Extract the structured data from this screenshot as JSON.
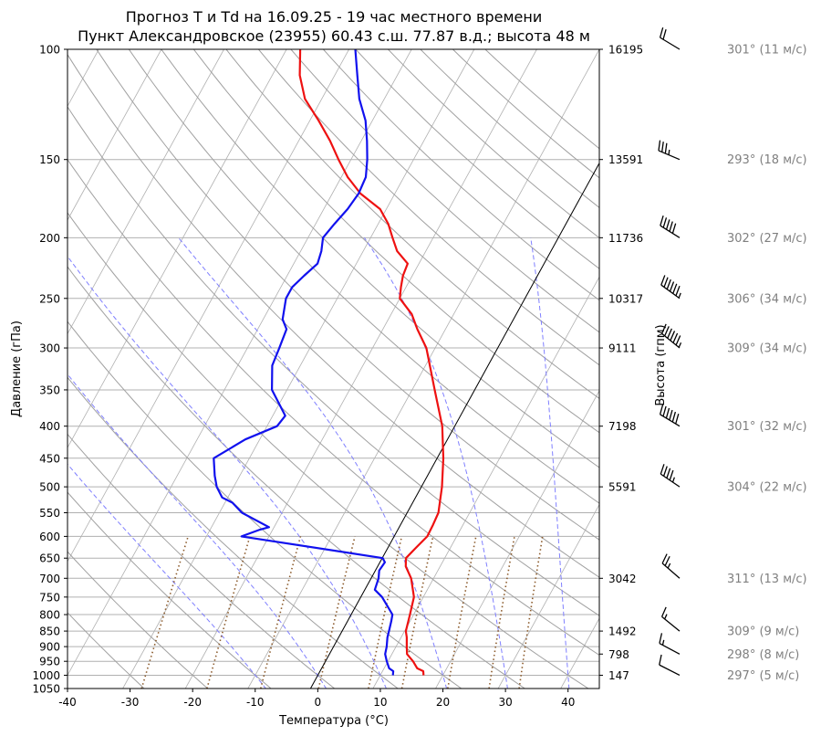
{
  "chart_data": {
    "type": "line",
    "subtype": "skew-t log-p",
    "title_line1": "Прогноз T и Td на 16.09.25 - 19 час местного времени",
    "title_line2": "Пункт Александровское (23955) 60.43 с.ш. 77.87 в.д.; высота 48 м",
    "xlabel": "Температура (°C)",
    "ylabel": "Давление (гПа)",
    "ylabel_right": "Высота (гпм)",
    "xlim": [
      -40,
      45
    ],
    "ylim": [
      1050,
      100
    ],
    "yscale": "log",
    "skew_deg_per_decade": 55,
    "grid": true,
    "x_ticks": [
      "-40",
      "-30",
      "-20",
      "-10",
      "0",
      "10",
      "20",
      "30",
      "40"
    ],
    "y_ticks": [
      100,
      150,
      200,
      250,
      300,
      350,
      400,
      450,
      500,
      550,
      600,
      650,
      700,
      750,
      800,
      850,
      900,
      950,
      1000,
      1050
    ],
    "height_ticks": [
      {
        "p": 100,
        "label": "16195"
      },
      {
        "p": 150,
        "label": "13591"
      },
      {
        "p": 200,
        "label": "11736"
      },
      {
        "p": 250,
        "label": "10317"
      },
      {
        "p": 300,
        "label": "9111"
      },
      {
        "p": 400,
        "label": "7198"
      },
      {
        "p": 500,
        "label": "5591"
      },
      {
        "p": 700,
        "label": "3042"
      },
      {
        "p": 850,
        "label": "1492"
      },
      {
        "p": 925,
        "label": "798"
      },
      {
        "p": 1000,
        "label": "147"
      }
    ],
    "series": [
      {
        "color": "#ee1111",
        "points": [
          [
            1000,
            16.9
          ],
          [
            985,
            16.5
          ],
          [
            975,
            15.3
          ],
          [
            950,
            14.0
          ],
          [
            925,
            12.4
          ],
          [
            900,
            11.7
          ],
          [
            870,
            10.9
          ],
          [
            850,
            10.2
          ],
          [
            800,
            9.4
          ],
          [
            750,
            8.5
          ],
          [
            700,
            6.4
          ],
          [
            670,
            4.5
          ],
          [
            650,
            3.8
          ],
          [
            625,
            4.5
          ],
          [
            600,
            5.3
          ],
          [
            575,
            5.2
          ],
          [
            550,
            5.0
          ],
          [
            500,
            3.3
          ],
          [
            450,
            1.0
          ],
          [
            400,
            -2.0
          ],
          [
            350,
            -6.4
          ],
          [
            300,
            -11.4
          ],
          [
            280,
            -14.5
          ],
          [
            265,
            -16.7
          ],
          [
            250,
            -20.0
          ],
          [
            240,
            -20.8
          ],
          [
            230,
            -21.5
          ],
          [
            220,
            -21.8
          ],
          [
            210,
            -24.6
          ],
          [
            200,
            -26.5
          ],
          [
            190,
            -28.4
          ],
          [
            180,
            -31.0
          ],
          [
            170,
            -35.5
          ],
          [
            160,
            -39.0
          ],
          [
            150,
            -42.0
          ],
          [
            140,
            -45.0
          ],
          [
            130,
            -48.6
          ],
          [
            120,
            -52.7
          ],
          [
            110,
            -55.6
          ],
          [
            100,
            -57.8
          ]
        ]
      },
      {
        "color": "#1111ee",
        "points": [
          [
            1000,
            12.0
          ],
          [
            985,
            11.7
          ],
          [
            975,
            10.8
          ],
          [
            950,
            9.8
          ],
          [
            925,
            8.9
          ],
          [
            900,
            8.5
          ],
          [
            870,
            7.8
          ],
          [
            850,
            7.5
          ],
          [
            820,
            7.0
          ],
          [
            800,
            6.6
          ],
          [
            750,
            3.4
          ],
          [
            730,
            1.6
          ],
          [
            700,
            1.2
          ],
          [
            680,
            0.6
          ],
          [
            660,
            0.8
          ],
          [
            650,
            0.1
          ],
          [
            600,
            -24.4
          ],
          [
            585,
            -22.0
          ],
          [
            580,
            -20.8
          ],
          [
            550,
            -26.4
          ],
          [
            530,
            -28.8
          ],
          [
            520,
            -30.9
          ],
          [
            500,
            -32.7
          ],
          [
            480,
            -34.0
          ],
          [
            450,
            -35.7
          ],
          [
            420,
            -32.3
          ],
          [
            400,
            -28.4
          ],
          [
            385,
            -28.0
          ],
          [
            350,
            -32.4
          ],
          [
            320,
            -34.5
          ],
          [
            300,
            -34.9
          ],
          [
            280,
            -35.4
          ],
          [
            270,
            -36.9
          ],
          [
            250,
            -38.2
          ],
          [
            240,
            -38.2
          ],
          [
            230,
            -37.3
          ],
          [
            220,
            -36.2
          ],
          [
            210,
            -36.7
          ],
          [
            200,
            -37.6
          ],
          [
            190,
            -37.0
          ],
          [
            180,
            -36.2
          ],
          [
            170,
            -35.8
          ],
          [
            160,
            -36.1
          ],
          [
            150,
            -37.4
          ],
          [
            140,
            -39.1
          ],
          [
            130,
            -41.1
          ],
          [
            120,
            -44.0
          ],
          [
            110,
            -46.4
          ],
          [
            100,
            -49.0
          ]
        ]
      }
    ],
    "winds": [
      {
        "p": 100,
        "label": "301° (11 м/с)",
        "dir": 301,
        "kt": 21
      },
      {
        "p": 150,
        "label": "293° (18 м/с)",
        "dir": 293,
        "kt": 35
      },
      {
        "p": 200,
        "label": "302° (27 м/с)",
        "dir": 302,
        "kt": 52
      },
      {
        "p": 250,
        "label": "306° (34 м/с)",
        "dir": 306,
        "kt": 66
      },
      {
        "p": 300,
        "label": "309° (34 м/с)",
        "dir": 309,
        "kt": 66
      },
      {
        "p": 400,
        "label": "301° (32 м/с)",
        "dir": 301,
        "kt": 62
      },
      {
        "p": 500,
        "label": "304° (22 м/с)",
        "dir": 304,
        "kt": 43
      },
      {
        "p": 700,
        "label": "311° (13 м/с)",
        "dir": 311,
        "kt": 25
      },
      {
        "p": 850,
        "label": "309° (9 м/с)",
        "dir": 309,
        "kt": 17
      },
      {
        "p": 925,
        "label": "298° (8 м/с)",
        "dir": 298,
        "kt": 16
      },
      {
        "p": 1000,
        "label": "297° (5 м/с)",
        "dir": 297,
        "kt": 10
      }
    ],
    "reference_lines": {
      "dry_adiabats_theta_C": [
        -30,
        -20,
        -10,
        0,
        10,
        20,
        30,
        40,
        50,
        60,
        70,
        80,
        90,
        100,
        110,
        120,
        130,
        140,
        150,
        160,
        170,
        180,
        190,
        200
      ],
      "moist_adiabats_T1000_C": [
        -10,
        0,
        10,
        20,
        30,
        40,
        50
      ],
      "mixing_ratio_gkg": [
        0.4,
        1,
        2,
        4,
        7,
        10,
        16,
        24,
        32
      ],
      "isotherm_0C_highlighted": true
    },
    "colors": {
      "temperature": "#ee1111",
      "dewpoint": "#1111ee",
      "dry_adiabat": "#a0a0a0",
      "moist_adiabat": "#7f7fff",
      "mixing_ratio": "#8b5a2b",
      "grid": "#b0b0b0",
      "wind_label": "#808080"
    }
  }
}
